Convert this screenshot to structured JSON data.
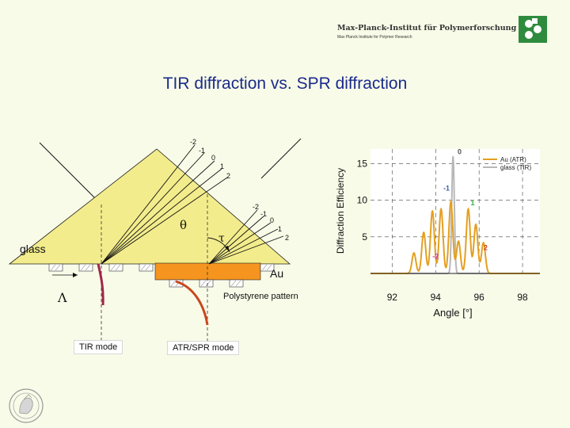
{
  "header": {
    "institute": "Max-Planck-Institut für Polymerforschung",
    "institute_sub": "Max Planck Institute for Polymer Research"
  },
  "title": "TIR diffraction vs. SPR diffraction",
  "diagram": {
    "glass_label": "glass",
    "au_label": "Au",
    "theta_symbol": "θ",
    "tau_symbol": "τ",
    "lambda_symbol": "Λ",
    "pattern_label": "Polystyrene pattern",
    "tir_mode_label": "TIR mode",
    "atr_mode_label": "ATR/SPR mode",
    "orders_top": [
      "-2",
      "-1",
      "0",
      "1",
      "2"
    ],
    "orders_right": [
      "-2",
      "-1",
      "0",
      "1",
      "2"
    ],
    "colors": {
      "prism": "#f2ec8c",
      "gold": "#f5941e",
      "tir_mode_curve": "#a1264a",
      "atr_mode_curve": "#c8471e"
    }
  },
  "chart_data": {
    "type": "line",
    "xlabel": "Angle [°]",
    "ylabel": "Diffraction Efficiency",
    "xlim": [
      91,
      98.8
    ],
    "ylim": [
      0,
      17
    ],
    "xticks": [
      92,
      94,
      96,
      98
    ],
    "yticks": [
      5,
      10,
      15
    ],
    "legend": "top-right",
    "series": [
      {
        "name": "Au (ATR)",
        "color": "#e3a020",
        "peaks": [
          [
            93.0,
            2.8
          ],
          [
            93.45,
            5.6
          ],
          [
            93.85,
            8.5
          ],
          [
            94.25,
            8.8
          ],
          [
            94.7,
            9.8
          ],
          [
            95.05,
            4.4
          ],
          [
            95.5,
            8.8
          ],
          [
            95.85,
            6.7
          ],
          [
            96.2,
            4.2
          ]
        ]
      },
      {
        "name": "glass (TIR)",
        "color": "#b8b8b8",
        "peaks": [
          [
            94.8,
            16.0
          ]
        ]
      }
    ],
    "annotations": [
      {
        "text": "0",
        "color": "#555555",
        "x": 95.1,
        "y": 16.3
      },
      {
        "text": "-1",
        "color": "#3a5fb0",
        "x": 94.5,
        "y": 11.3
      },
      {
        "text": "1",
        "color": "#3cae3c",
        "x": 95.7,
        "y": 9.3
      },
      {
        "text": "-2",
        "color": "#cc33aa",
        "x": 94.0,
        "y": 2.0
      },
      {
        "text": "2",
        "color": "#d03a2a",
        "x": 96.3,
        "y": 3.2
      }
    ]
  }
}
